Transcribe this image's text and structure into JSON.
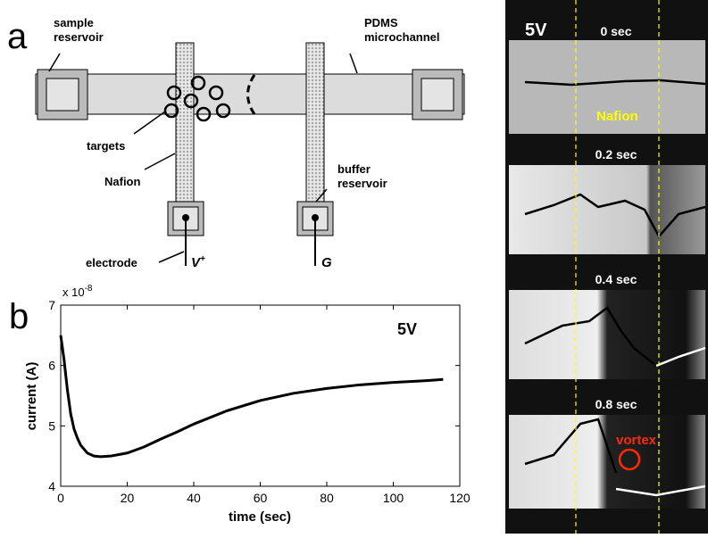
{
  "panel_a": {
    "label": "a",
    "sample_reservoir": [
      "sample",
      "reservoir"
    ],
    "pdms_microchannel": [
      "PDMS",
      "microchannel"
    ],
    "targets": "targets",
    "nafion": "Nafion",
    "buffer_reservoir": [
      "buffer",
      "reservoir"
    ],
    "electrode": "electrode",
    "v_plus": "V",
    "v_plus_sup": "+",
    "ground": "G"
  },
  "chart_data": {
    "type": "line",
    "panel_label": "b",
    "annotation": "5V",
    "exponent_base": "x 10",
    "exponent_power": "-8",
    "x_label": "time (sec)",
    "y_label": "current (A)",
    "x": [
      0,
      1,
      2,
      3,
      4,
      5,
      6,
      8,
      10,
      12,
      15,
      20,
      25,
      30,
      35,
      40,
      50,
      60,
      70,
      80,
      90,
      100,
      110,
      115
    ],
    "values": [
      6.5,
      6.1,
      5.6,
      5.2,
      4.95,
      4.8,
      4.68,
      4.55,
      4.5,
      4.49,
      4.5,
      4.55,
      4.65,
      4.78,
      4.9,
      5.03,
      5.25,
      5.42,
      5.54,
      5.62,
      5.68,
      5.72,
      5.75,
      5.77
    ],
    "color": "#000000",
    "xlim": [
      0,
      120
    ],
    "xticks": [
      0,
      20,
      40,
      60,
      80,
      100,
      120
    ],
    "ylim": [
      4,
      7
    ],
    "yticks": [
      4,
      5,
      6,
      7
    ]
  },
  "panel_c": {
    "voltage": "5V",
    "frames": [
      "0 sec",
      "0.2 sec",
      "0.4 sec",
      "0.8 sec"
    ],
    "nafion": "Nafion",
    "vortex": "vortex"
  }
}
